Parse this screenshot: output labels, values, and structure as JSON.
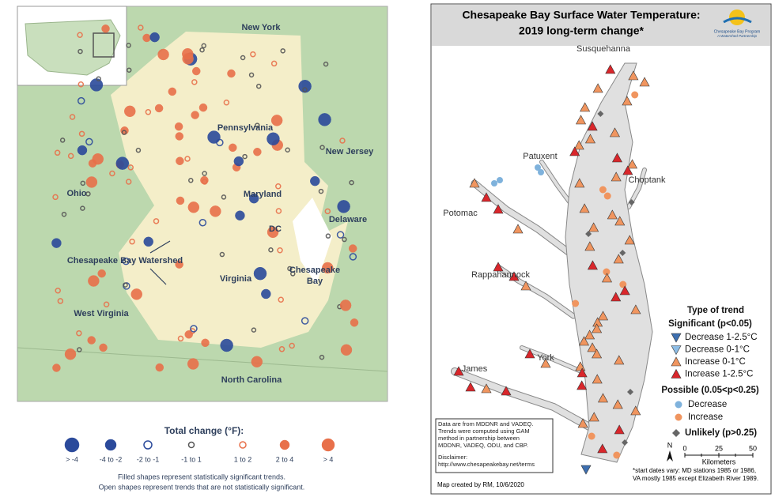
{
  "left_map": {
    "labels": {
      "new_york": "New York",
      "pennsylvania": "Pennsylvania",
      "new_jersey": "New Jersey",
      "ohio": "Ohio",
      "maryland": "Maryland",
      "delaware": "Delaware",
      "dc": "DC",
      "watershed": "Chesapeake Bay Watershed",
      "virginia": "Virginia",
      "bay": [
        "Chesapeake",
        "Bay"
      ],
      "west_virginia": "West Virginia",
      "north_carolina": "North Carolina"
    },
    "legend": {
      "title": "Total change (°F):",
      "items": [
        "> -4",
        "-4 to -2",
        "-2 to -1",
        "-1 to 1",
        "1 to 2",
        "2 to 4",
        "> 4"
      ]
    },
    "notes": [
      "Filled shapes represent statistically significant trends.",
      "Open shapes represent trends that are not statistically significant."
    ]
  },
  "right_map": {
    "title": [
      "Chesapeake Bay Surface Water Temperature:",
      "2019 long-term change*"
    ],
    "logo": [
      "Chesapeake Bay Program",
      "A Watershed Partnership"
    ],
    "labels": {
      "susquehanna": "Susquehanna",
      "patuxent": "Patuxent",
      "choptank": "Choptank",
      "potomac": "Potomac",
      "rappahannock": "Rappahannock",
      "james": "James",
      "york": "York"
    },
    "legend": {
      "title": "Type of trend",
      "significant": "Significant (p<0.05)",
      "items": [
        "Decrease 1-2.5°C",
        "Decrease 0-1°C",
        "Increase 0-1°C",
        "Increase 1-2.5°C"
      ],
      "possible": "Possible (0.05<p<0.25)",
      "possible_items": [
        "Decrease",
        "Increase"
      ],
      "unlikely": "Unlikely (p>0.25)"
    },
    "data_note": [
      "Data are from MDDNR and VADEQ.",
      "Trends were computed using GAM",
      "method in partnership between",
      "MDDNR, VADEQ, ODU, and CBP."
    ],
    "disclaimer": [
      "Disclaimer:",
      "http://www.chesapeakebay.net/terms"
    ],
    "scale": {
      "north": "N",
      "ticks": [
        "0",
        "25",
        "50"
      ],
      "unit": "Kilometers"
    },
    "footnote": [
      "*start dates vary: MD stations 1985 or 1986,",
      "VA mostly 1985 except Elizabeth River 1989."
    ],
    "credit": "Map created by RM, 10/6/2020"
  }
}
